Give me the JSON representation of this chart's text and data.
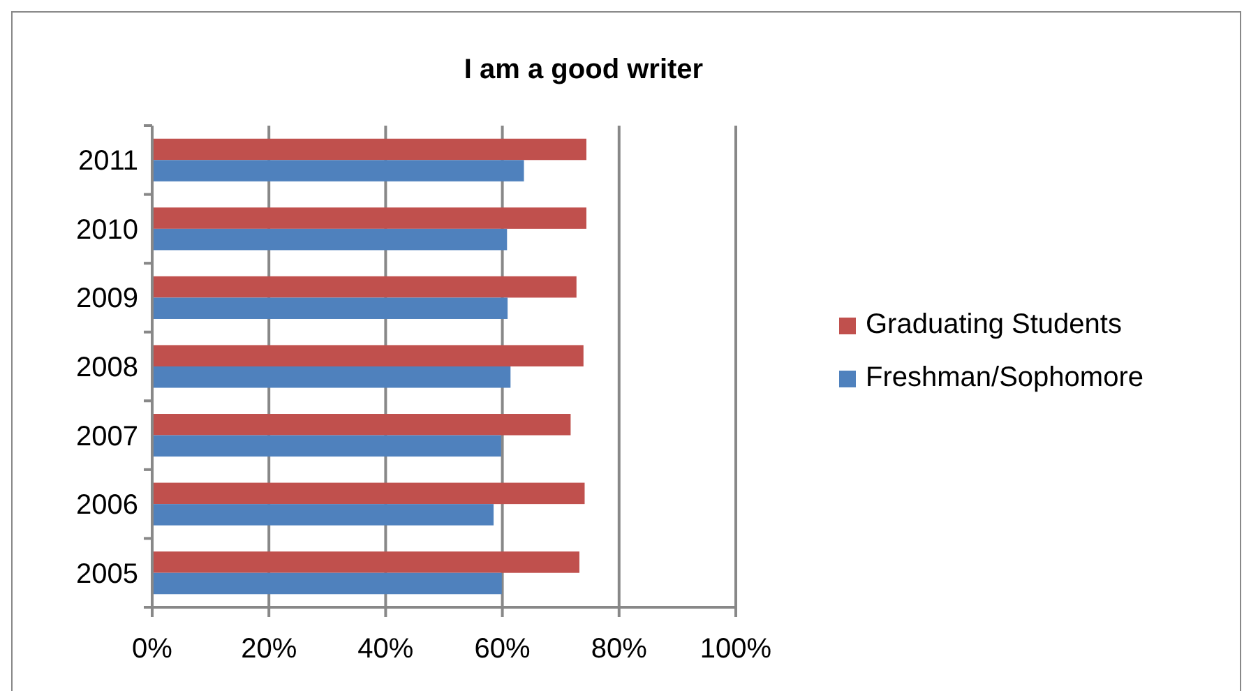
{
  "chart_data": {
    "type": "bar",
    "orientation": "horizontal",
    "title": "I am a good writer",
    "categories": [
      "2011",
      "2010",
      "2009",
      "2008",
      "2007",
      "2006",
      "2005"
    ],
    "series": [
      {
        "name": "Graduating Students",
        "color": "#c0504d",
        "values": [
          74.4,
          74.4,
          72.7,
          73.9,
          71.7,
          74.1,
          73.2
        ]
      },
      {
        "name": "Freshman/Sophomore",
        "color": "#4f81bd",
        "values": [
          63.7,
          60.8,
          60.9,
          61.4,
          59.8,
          58.5,
          59.9
        ]
      }
    ],
    "xlim": [
      0,
      100
    ],
    "xticks": [
      {
        "value": 0,
        "label": "0%"
      },
      {
        "value": 20,
        "label": "20%"
      },
      {
        "value": 40,
        "label": "40%"
      },
      {
        "value": 60,
        "label": "60%"
      },
      {
        "value": 80,
        "label": "80%"
      },
      {
        "value": 100,
        "label": "100%"
      }
    ],
    "grid": "x",
    "legend": "right"
  }
}
